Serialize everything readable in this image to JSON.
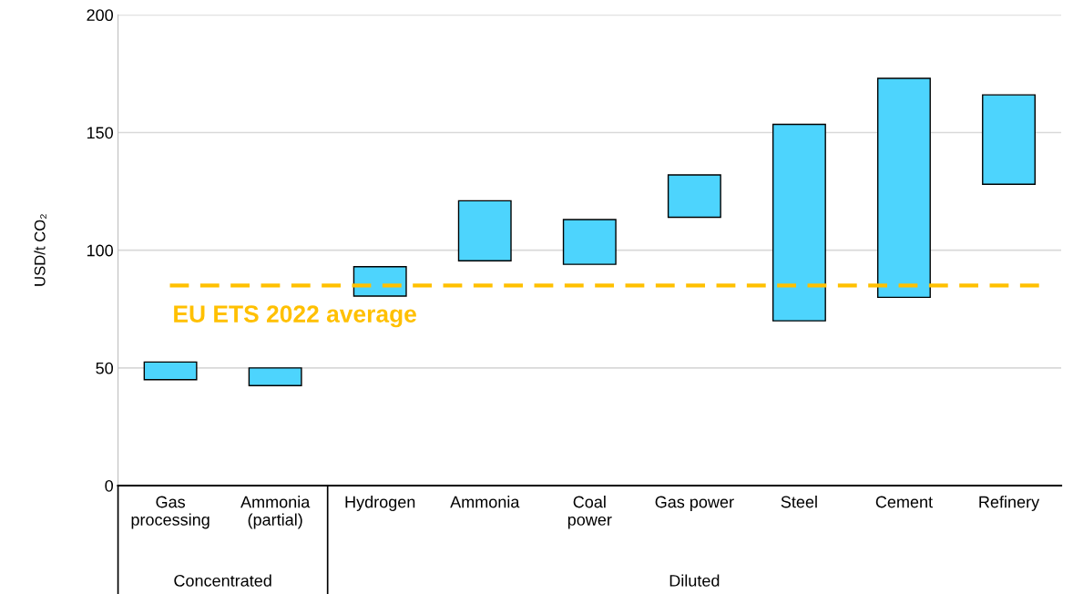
{
  "chart_data": {
    "type": "bar",
    "ylabel": "USD/t CO₂",
    "categories": [
      "Gas\nprocessing",
      "Ammonia\n(partial)",
      "Hydrogen",
      "Ammonia",
      "Coal\npower",
      "Gas power",
      "Steel",
      "Cement",
      "Refinery"
    ],
    "base": [
      45,
      42.5,
      80.5,
      95.5,
      94,
      114,
      70,
      80,
      128
    ],
    "values": [
      7.5,
      7.5,
      12.5,
      25.5,
      19,
      18,
      83.5,
      93,
      38
    ],
    "color": "#4dd4fd",
    "ylim": [
      0,
      200
    ],
    "yticks": [
      0,
      50,
      100,
      150,
      200
    ],
    "grid": "y",
    "ref_lines": [
      {
        "axis": "y",
        "value": 85,
        "label": "EU ETS 2022 average",
        "color": "#ffc000",
        "line_style": "dashed"
      }
    ],
    "annotations": [
      "Concentrated",
      "Diluted"
    ]
  }
}
